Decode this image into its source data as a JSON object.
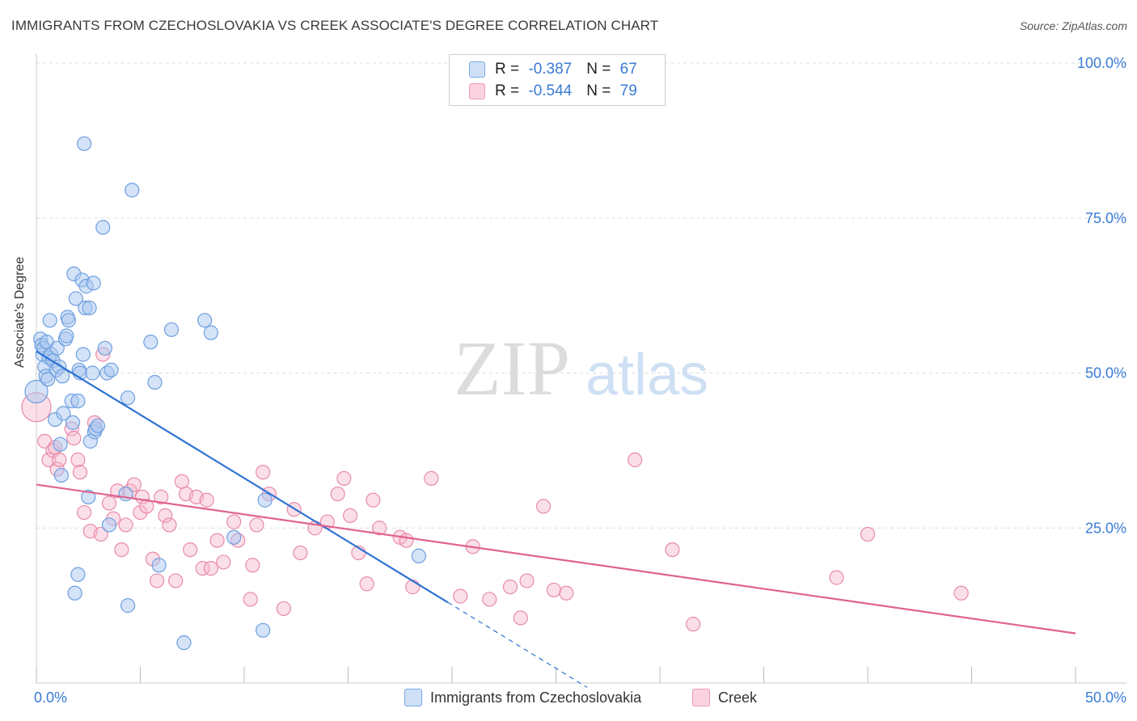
{
  "header": {
    "title": "IMMIGRANTS FROM CZECHOSLOVAKIA VS CREEK ASSOCIATE'S DEGREE CORRELATION CHART",
    "source": "Source: ZipAtlas.com"
  },
  "watermark": {
    "zip": "ZIP",
    "atlas": "atlas"
  },
  "legend_top": {
    "rows": [
      {
        "r_label": "R = ",
        "r_value": "-0.387",
        "n_label": "N = ",
        "n_value": "67"
      },
      {
        "r_label": "R = ",
        "r_value": "-0.544",
        "n_label": "N = ",
        "n_value": "79"
      }
    ]
  },
  "legend_bottom": {
    "series1": "Immigrants from Czechoslovakia",
    "series2": "Creek"
  },
  "colors": {
    "series1_fill": "#a9c8f0",
    "series1_stroke": "#6e9fe0",
    "series1_line": "#2f73d3",
    "series2_fill": "#f6b8cd",
    "series2_stroke": "#e88aab",
    "series2_line": "#e0628f",
    "tick_label": "#3a7bd5",
    "grid": "#dddddd"
  },
  "chart_data": {
    "type": "scatter",
    "title": "IMMIGRANTS FROM CZECHOSLOVAKIA VS CREEK ASSOCIATE'S DEGREE CORRELATION CHART",
    "xlabel": "",
    "ylabel": "Associate's Degree",
    "xlim": [
      0,
      50
    ],
    "ylim": [
      0,
      100
    ],
    "x_tick_labels": [
      "0.0%",
      "50.0%"
    ],
    "y_tick_labels": [
      "100.0%",
      "75.0%",
      "50.0%",
      "25.0%"
    ],
    "y_ticks": [
      100,
      75,
      50,
      25
    ],
    "grid": true,
    "series": [
      {
        "name": "Immigrants from Czechoslovakia",
        "R": -0.387,
        "N": 67,
        "trend": {
          "x0": 0.0,
          "y0": 53.5,
          "x1": 19.8,
          "y1": 13.0,
          "dash_to_x": 26.5
        },
        "points": [
          [
            0.0,
            47
          ],
          [
            0.2,
            55.5
          ],
          [
            0.25,
            54.5
          ],
          [
            0.3,
            53
          ],
          [
            0.35,
            54
          ],
          [
            0.4,
            51
          ],
          [
            0.45,
            49.5
          ],
          [
            0.5,
            55
          ],
          [
            0.6,
            52.5
          ],
          [
            0.65,
            58.5
          ],
          [
            0.7,
            53
          ],
          [
            0.8,
            52
          ],
          [
            0.9,
            42.5
          ],
          [
            0.95,
            50.5
          ],
          [
            1.0,
            54
          ],
          [
            1.1,
            51
          ],
          [
            1.15,
            38.5
          ],
          [
            1.2,
            33.5
          ],
          [
            1.25,
            49.5
          ],
          [
            1.3,
            43.5
          ],
          [
            1.4,
            55.5
          ],
          [
            1.45,
            56
          ],
          [
            1.5,
            59
          ],
          [
            1.55,
            58.5
          ],
          [
            1.7,
            45.5
          ],
          [
            1.75,
            42
          ],
          [
            1.8,
            66
          ],
          [
            1.9,
            62
          ],
          [
            2.0,
            45.5
          ],
          [
            2.05,
            50.5
          ],
          [
            2.1,
            50
          ],
          [
            2.2,
            65
          ],
          [
            2.25,
            53
          ],
          [
            2.3,
            87
          ],
          [
            2.35,
            60.5
          ],
          [
            2.4,
            64
          ],
          [
            2.5,
            30
          ],
          [
            2.55,
            60.5
          ],
          [
            2.6,
            39
          ],
          [
            2.7,
            50
          ],
          [
            2.75,
            64.5
          ],
          [
            2.8,
            40.5
          ],
          [
            2.85,
            41
          ],
          [
            2.95,
            41.5
          ],
          [
            1.85,
            14.5
          ],
          [
            2.0,
            17.5
          ],
          [
            3.2,
            73.5
          ],
          [
            3.3,
            54
          ],
          [
            3.4,
            50
          ],
          [
            3.5,
            25.5
          ],
          [
            3.6,
            50.5
          ],
          [
            4.3,
            30.5
          ],
          [
            4.4,
            46
          ],
          [
            4.4,
            12.5
          ],
          [
            4.6,
            79.5
          ],
          [
            5.5,
            55
          ],
          [
            5.7,
            48.5
          ],
          [
            5.9,
            19
          ],
          [
            6.5,
            57
          ],
          [
            7.1,
            6.5
          ],
          [
            8.1,
            58.5
          ],
          [
            8.4,
            56.5
          ],
          [
            9.5,
            23.5
          ],
          [
            10.9,
            8.5
          ],
          [
            11.0,
            29.5
          ],
          [
            18.4,
            20.5
          ],
          [
            0.55,
            49
          ]
        ]
      },
      {
        "name": "Creek",
        "R": -0.544,
        "N": 79,
        "trend": {
          "x0": 0.0,
          "y0": 32.0,
          "x1": 50.0,
          "y1": 8.0
        },
        "points": [
          [
            0.0,
            44.5
          ],
          [
            0.4,
            39
          ],
          [
            0.6,
            36
          ],
          [
            0.8,
            37.5
          ],
          [
            0.9,
            38
          ],
          [
            1.0,
            34.5
          ],
          [
            1.1,
            36
          ],
          [
            1.7,
            41
          ],
          [
            1.8,
            39.5
          ],
          [
            2.0,
            36
          ],
          [
            2.1,
            34
          ],
          [
            2.3,
            27.5
          ],
          [
            2.6,
            24.5
          ],
          [
            2.8,
            42
          ],
          [
            3.1,
            24
          ],
          [
            3.2,
            53
          ],
          [
            3.5,
            29
          ],
          [
            3.7,
            26.5
          ],
          [
            3.9,
            31
          ],
          [
            4.1,
            21.5
          ],
          [
            4.3,
            25.5
          ],
          [
            4.5,
            31
          ],
          [
            4.7,
            32
          ],
          [
            5.0,
            27.5
          ],
          [
            5.1,
            30
          ],
          [
            5.3,
            28.5
          ],
          [
            5.6,
            20
          ],
          [
            5.8,
            16.5
          ],
          [
            6.0,
            30
          ],
          [
            6.2,
            27
          ],
          [
            6.4,
            25.5
          ],
          [
            6.7,
            16.5
          ],
          [
            7.0,
            32.5
          ],
          [
            7.2,
            30.5
          ],
          [
            7.4,
            21.5
          ],
          [
            7.7,
            30
          ],
          [
            8.0,
            18.5
          ],
          [
            8.2,
            29.5
          ],
          [
            8.4,
            18.5
          ],
          [
            8.7,
            23
          ],
          [
            9.0,
            19.5
          ],
          [
            9.5,
            26
          ],
          [
            9.7,
            23
          ],
          [
            10.3,
            13.5
          ],
          [
            10.4,
            19
          ],
          [
            10.6,
            25.5
          ],
          [
            10.9,
            34
          ],
          [
            11.2,
            30.5
          ],
          [
            11.9,
            12
          ],
          [
            12.4,
            28
          ],
          [
            12.7,
            21
          ],
          [
            13.4,
            25
          ],
          [
            14.0,
            26
          ],
          [
            14.5,
            30.5
          ],
          [
            14.8,
            33
          ],
          [
            15.1,
            27
          ],
          [
            15.5,
            21
          ],
          [
            15.9,
            16
          ],
          [
            16.2,
            29.5
          ],
          [
            16.5,
            25
          ],
          [
            17.5,
            23.5
          ],
          [
            17.8,
            23
          ],
          [
            18.1,
            15.5
          ],
          [
            19.0,
            33
          ],
          [
            20.4,
            14
          ],
          [
            21.0,
            22
          ],
          [
            21.8,
            13.5
          ],
          [
            22.8,
            15.5
          ],
          [
            23.3,
            10.5
          ],
          [
            23.6,
            16.5
          ],
          [
            24.4,
            28.5
          ],
          [
            24.9,
            15
          ],
          [
            25.5,
            14.5
          ],
          [
            28.8,
            36
          ],
          [
            30.6,
            21.5
          ],
          [
            31.6,
            9.5
          ],
          [
            38.5,
            17
          ],
          [
            40.0,
            24
          ],
          [
            44.5,
            14.5
          ]
        ]
      }
    ]
  }
}
